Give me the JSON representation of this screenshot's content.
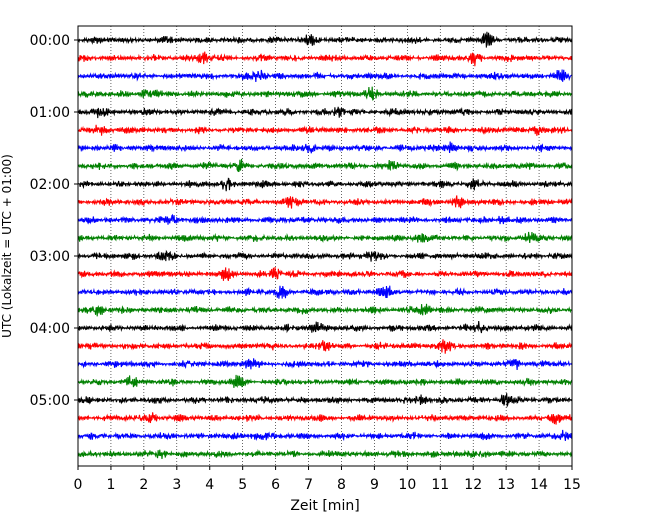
{
  "chart_data": {
    "type": "line",
    "title": "",
    "xlabel": "Zeit  [min]",
    "ylabel": "UTC (Lokalzeit = UTC + 01:00)",
    "xlim": [
      0,
      15
    ],
    "x_ticks": [
      0,
      1,
      2,
      3,
      4,
      5,
      6,
      7,
      8,
      9,
      10,
      11,
      12,
      13,
      14,
      15
    ],
    "x_tick_labels": [
      "0",
      "1",
      "2",
      "3",
      "4",
      "5",
      "6",
      "7",
      "8",
      "9",
      "10",
      "11",
      "12",
      "13",
      "14",
      "15"
    ],
    "y_tick_labels": [
      "00:00",
      "01:00",
      "02:00",
      "03:00",
      "04:00",
      "05:00"
    ],
    "grid": "vertical dotted",
    "trace_colors": [
      "#000000",
      "#ff0000",
      "#0000ff",
      "#008000"
    ],
    "traces": [
      {
        "start": "00:00",
        "color": "#000000",
        "bursts": [
          7.1,
          12.4
        ]
      },
      {
        "start": "00:15",
        "color": "#ff0000",
        "bursts": [
          3.8,
          12.1
        ]
      },
      {
        "start": "00:30",
        "color": "#0000ff",
        "bursts": [
          5.5,
          14.6
        ]
      },
      {
        "start": "00:45",
        "color": "#008000",
        "bursts": [
          2.1,
          8.9
        ]
      },
      {
        "start": "01:00",
        "color": "#000000",
        "bursts": [
          0.6,
          7.9
        ]
      },
      {
        "start": "01:15",
        "color": "#ff0000",
        "bursts": [
          0.7,
          14.0
        ]
      },
      {
        "start": "01:30",
        "color": "#0000ff",
        "bursts": [
          7.0,
          11.3
        ]
      },
      {
        "start": "01:45",
        "color": "#008000",
        "bursts": [
          4.9,
          9.5
        ]
      },
      {
        "start": "02:00",
        "color": "#000000",
        "bursts": [
          4.5,
          12.0
        ]
      },
      {
        "start": "02:15",
        "color": "#ff0000",
        "bursts": [
          6.5,
          11.5
        ]
      },
      {
        "start": "02:30",
        "color": "#0000ff",
        "bursts": [
          2.9,
          12.9
        ]
      },
      {
        "start": "02:45",
        "color": "#008000",
        "bursts": [
          10.4,
          13.7
        ]
      },
      {
        "start": "03:00",
        "color": "#000000",
        "bursts": [
          2.6,
          8.9
        ]
      },
      {
        "start": "03:15",
        "color": "#ff0000",
        "bursts": [
          4.5,
          6.0
        ]
      },
      {
        "start": "03:30",
        "color": "#0000ff",
        "bursts": [
          6.2,
          9.3
        ]
      },
      {
        "start": "03:45",
        "color": "#008000",
        "bursts": [
          0.6,
          10.5
        ]
      },
      {
        "start": "04:00",
        "color": "#000000",
        "bursts": [
          7.2,
          12.2
        ]
      },
      {
        "start": "04:15",
        "color": "#ff0000",
        "bursts": [
          11.1,
          7.5
        ]
      },
      {
        "start": "04:30",
        "color": "#0000ff",
        "bursts": [
          5.2,
          13.3
        ]
      },
      {
        "start": "04:45",
        "color": "#008000",
        "bursts": [
          1.6,
          4.8
        ]
      },
      {
        "start": "05:00",
        "color": "#000000",
        "bursts": [
          10.4,
          13.0
        ]
      },
      {
        "start": "05:15",
        "color": "#ff0000",
        "bursts": [
          2.3,
          14.5
        ]
      },
      {
        "start": "05:30",
        "color": "#0000ff",
        "bursts": [
          5.5,
          14.8
        ]
      },
      {
        "start": "05:45",
        "color": "#008000",
        "bursts": [
          2.5,
          12.3
        ]
      }
    ]
  }
}
